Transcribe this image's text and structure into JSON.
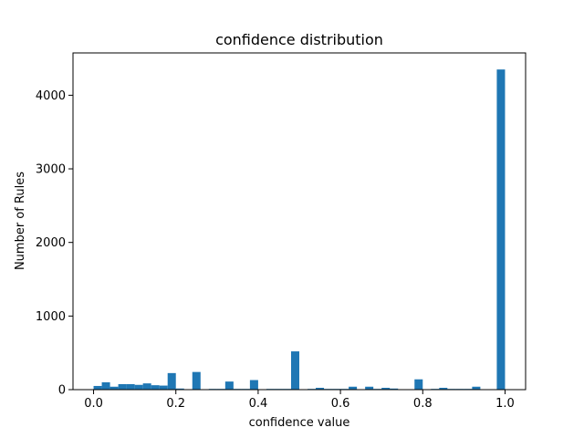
{
  "chart_data": {
    "type": "bar",
    "title": "confidence distribution",
    "xlabel": "confidence value",
    "ylabel": "Number of Rules",
    "xlim": [
      -0.05,
      1.05
    ],
    "ylim": [
      0,
      4575
    ],
    "xticks": [
      "0.0",
      "0.2",
      "0.4",
      "0.6",
      "0.8",
      "1.0"
    ],
    "yticks": [
      "0",
      "1000",
      "2000",
      "3000",
      "4000"
    ],
    "bar_color": "#1f77b4",
    "bin_width": 0.02,
    "bin_starts": [
      0.0,
      0.02,
      0.04,
      0.06,
      0.08,
      0.1,
      0.12,
      0.14,
      0.16,
      0.18,
      0.2,
      0.22,
      0.24,
      0.26,
      0.28,
      0.3,
      0.32,
      0.34,
      0.36,
      0.38,
      0.4,
      0.42,
      0.44,
      0.46,
      0.48,
      0.5,
      0.52,
      0.54,
      0.56,
      0.58,
      0.6,
      0.62,
      0.64,
      0.66,
      0.68,
      0.7,
      0.72,
      0.74,
      0.76,
      0.78,
      0.8,
      0.82,
      0.84,
      0.86,
      0.88,
      0.9,
      0.92,
      0.94,
      0.96,
      0.98
    ],
    "values": [
      50,
      100,
      40,
      75,
      75,
      65,
      85,
      60,
      55,
      225,
      15,
      5,
      240,
      5,
      10,
      10,
      110,
      10,
      10,
      130,
      5,
      10,
      10,
      10,
      520,
      0,
      10,
      25,
      10,
      10,
      10,
      40,
      5,
      40,
      10,
      25,
      15,
      0,
      0,
      140,
      0,
      10,
      25,
      10,
      10,
      10,
      40,
      5,
      5,
      4350
    ]
  }
}
